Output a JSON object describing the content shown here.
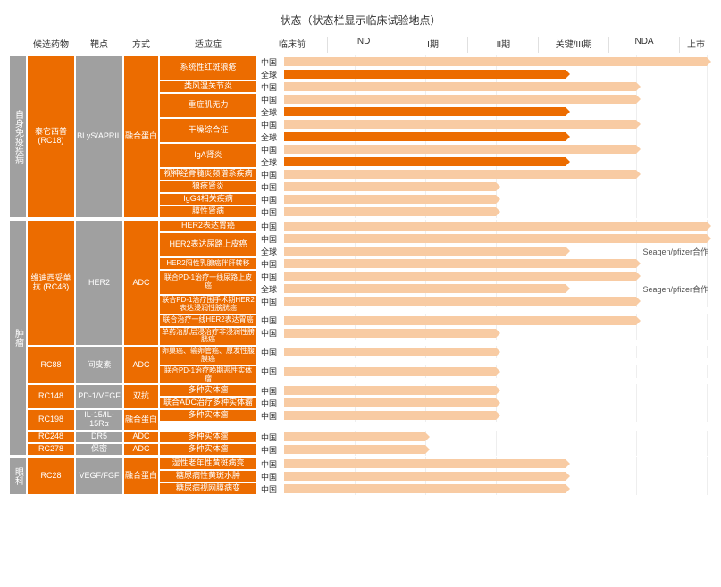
{
  "title": "状态（状态栏显示临床试验地点）",
  "headers": {
    "disease": "",
    "drug": "候选药物",
    "target": "靶点",
    "method": "方式",
    "indication": "适应症",
    "phases": [
      "临床前",
      "IND",
      "I期",
      "II期",
      "关键/III期",
      "NDA",
      "上市"
    ]
  },
  "colors": {
    "gray": "#a0a0a0",
    "orange": "#ec6c00",
    "bar_light": "#f8cba3",
    "bar_dark": "#ec6c00",
    "grid": "#eeeeee"
  },
  "region_labels": {
    "cn": "中国",
    "global": "全球"
  },
  "phase_count": 6,
  "diseases": [
    {
      "name": "自身免疫疾病",
      "drugs": [
        {
          "drug": "泰它西普 (RC18)",
          "target": "BLyS/APRIL",
          "method": "融合蛋白",
          "indications": [
            {
              "name": "系统性红斑狼疮",
              "rows": [
                {
                  "region": "cn",
                  "len": 6,
                  "style": "light"
                },
                {
                  "region": "global",
                  "len": 4,
                  "style": "dark"
                }
              ]
            },
            {
              "name": "类风湿关节炎",
              "rows": [
                {
                  "region": "cn",
                  "len": 5,
                  "style": "light"
                }
              ]
            },
            {
              "name": "重症肌无力",
              "rows": [
                {
                  "region": "cn",
                  "len": 5,
                  "style": "light"
                },
                {
                  "region": "global",
                  "len": 4,
                  "style": "dark"
                }
              ]
            },
            {
              "name": "干燥综合征",
              "rows": [
                {
                  "region": "cn",
                  "len": 5,
                  "style": "light"
                },
                {
                  "region": "global",
                  "len": 4,
                  "style": "dark"
                }
              ]
            },
            {
              "name": "IgA肾炎",
              "rows": [
                {
                  "region": "cn",
                  "len": 5,
                  "style": "light"
                },
                {
                  "region": "global",
                  "len": 4,
                  "style": "dark"
                }
              ]
            },
            {
              "name": "视神经脊髓炎频谱系疾病",
              "rows": [
                {
                  "region": "cn",
                  "len": 5,
                  "style": "light"
                }
              ]
            },
            {
              "name": "狼疮肾炎",
              "rows": [
                {
                  "region": "cn",
                  "len": 3,
                  "style": "light"
                }
              ]
            },
            {
              "name": "IgG4相关疾病",
              "rows": [
                {
                  "region": "cn",
                  "len": 3,
                  "style": "light"
                }
              ]
            },
            {
              "name": "膜性肾病",
              "rows": [
                {
                  "region": "cn",
                  "len": 3,
                  "style": "light"
                }
              ]
            }
          ]
        }
      ]
    },
    {
      "name": "肿瘤",
      "drugs": [
        {
          "drug": "维迪西妥单抗 (RC48)",
          "target": "HER2",
          "method": "ADC",
          "indications": [
            {
              "name": "HER2表达胃癌",
              "rows": [
                {
                  "region": "cn",
                  "len": 6,
                  "style": "light"
                }
              ]
            },
            {
              "name": "HER2表达尿路上皮癌",
              "rows": [
                {
                  "region": "cn",
                  "len": 6,
                  "style": "light"
                },
                {
                  "region": "global",
                  "len": 4,
                  "style": "light",
                  "note": "Seagen/pfizer合作"
                }
              ]
            },
            {
              "name": "HER2阳性乳腺癌伴肝转移",
              "rows": [
                {
                  "region": "cn",
                  "len": 5,
                  "style": "light"
                }
              ]
            },
            {
              "name": "联合PD-1治疗一线尿路上皮癌",
              "rows": [
                {
                  "region": "cn",
                  "len": 5,
                  "style": "light"
                },
                {
                  "region": "global",
                  "len": 4,
                  "style": "light",
                  "note": "Seagen/pfizer合作"
                }
              ]
            },
            {
              "name": "联合PD-1治疗围手术期HER2表达浸润性膀胱癌",
              "rows": [
                {
                  "region": "cn",
                  "len": 5,
                  "style": "light"
                }
              ]
            },
            {
              "name": "联合治疗一线HER2表达胃癌",
              "rows": [
                {
                  "region": "cn",
                  "len": 5,
                  "style": "light"
                }
              ]
            },
            {
              "name": "单药治肌层浸治疗非浸润性膀胱癌",
              "rows": [
                {
                  "region": "cn",
                  "len": 3,
                  "style": "light"
                }
              ]
            }
          ]
        },
        {
          "drug": "RC88",
          "target": "间皮素",
          "method": "ADC",
          "indications": [
            {
              "name": "卵巢癌、输卵管癌、原发性腹膜癌",
              "rows": [
                {
                  "region": "cn",
                  "len": 3,
                  "style": "light"
                }
              ]
            },
            {
              "name": "联合PD-1治疗晚期恶性实体瘤",
              "rows": [
                {
                  "region": "cn",
                  "len": 3,
                  "style": "light"
                }
              ]
            }
          ]
        },
        {
          "drug": "RC148",
          "target": "PD-1/VEGF",
          "method": "双抗",
          "indications": [
            {
              "name": "多种实体瘤",
              "rows": [
                {
                  "region": "cn",
                  "len": 3,
                  "style": "light"
                }
              ]
            },
            {
              "name": "联合ADC治疗多种实体瘤",
              "rows": [
                {
                  "region": "cn",
                  "len": 3,
                  "style": "light"
                }
              ]
            }
          ]
        },
        {
          "drug": "RC198",
          "target": "IL-15/IL-15Rα",
          "method": "融合蛋白",
          "indications": [
            {
              "name": "多种实体瘤",
              "rows": [
                {
                  "region": "cn",
                  "len": 3,
                  "style": "light"
                }
              ]
            }
          ]
        },
        {
          "drug": "RC248",
          "target": "DR5",
          "method": "ADC",
          "indications": [
            {
              "name": "多种实体瘤",
              "rows": [
                {
                  "region": "cn",
                  "len": 2,
                  "style": "light"
                }
              ]
            }
          ]
        },
        {
          "drug": "RC278",
          "target": "保密",
          "method": "ADC",
          "indications": [
            {
              "name": "多种实体瘤",
              "rows": [
                {
                  "region": "cn",
                  "len": 2,
                  "style": "light"
                }
              ]
            }
          ]
        }
      ]
    },
    {
      "name": "眼科",
      "drugs": [
        {
          "drug": "RC28",
          "target": "VEGF/FGF",
          "method": "融合蛋白",
          "indications": [
            {
              "name": "湿性老年性黄斑病变",
              "rows": [
                {
                  "region": "cn",
                  "len": 4,
                  "style": "light"
                }
              ]
            },
            {
              "name": "糖尿病性黄斑水肿",
              "rows": [
                {
                  "region": "cn",
                  "len": 4,
                  "style": "light"
                }
              ]
            },
            {
              "name": "糖尿病视网膜病变",
              "rows": [
                {
                  "region": "cn",
                  "len": 4,
                  "style": "light"
                }
              ]
            }
          ]
        }
      ]
    }
  ]
}
